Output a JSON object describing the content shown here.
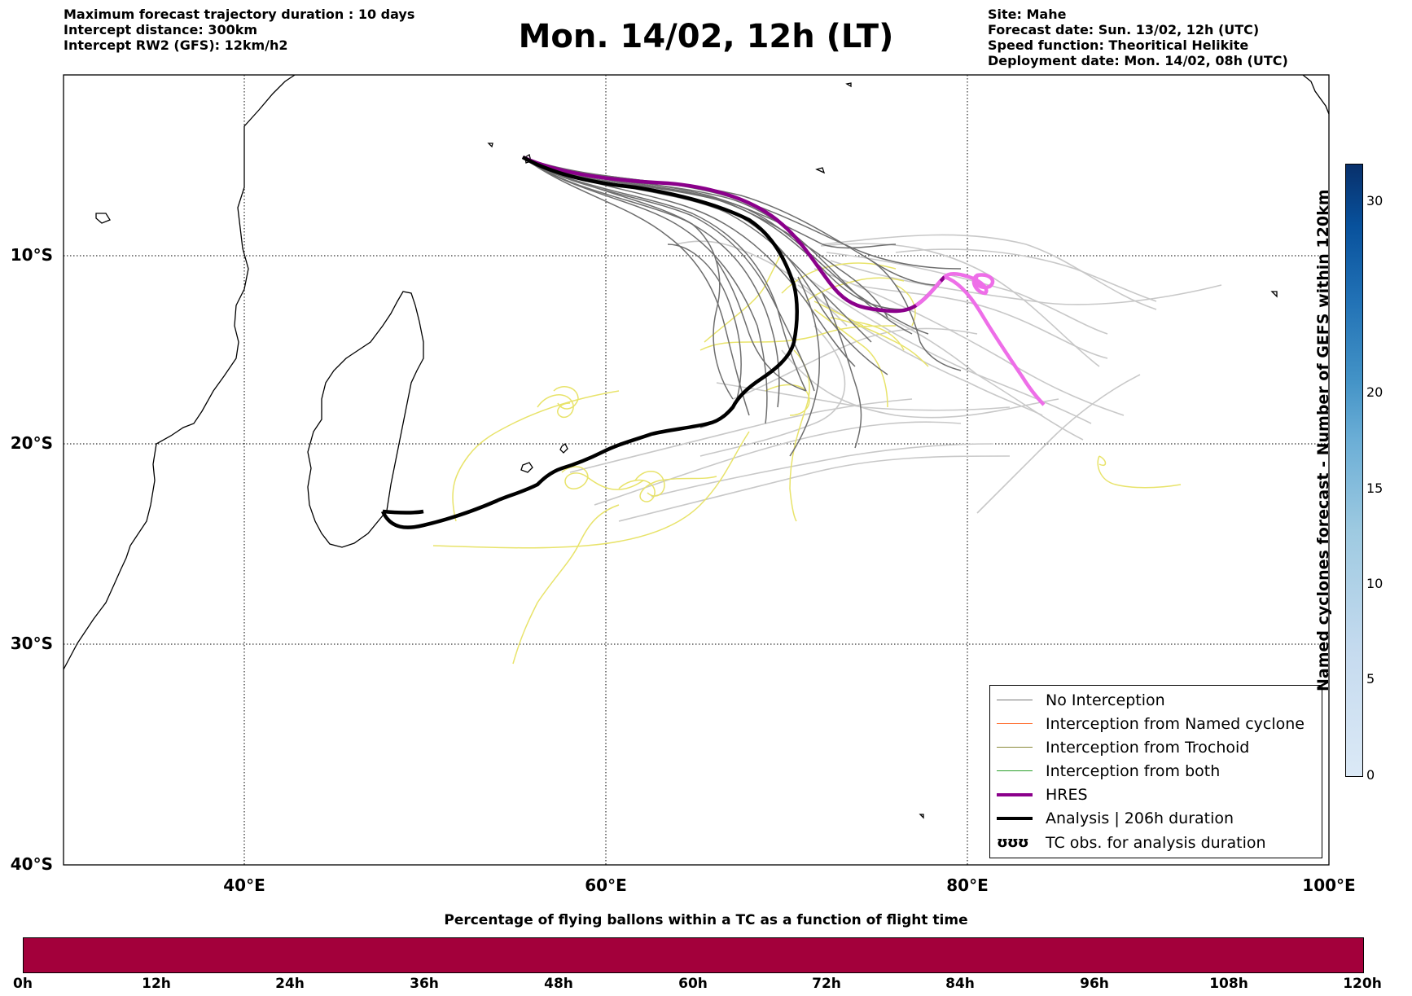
{
  "header": {
    "left": [
      "Maximum forecast trajectory duration : 10 days",
      "Intercept distance: 300km",
      "Intercept RW2 (GFS):  12km/h2"
    ],
    "title": "Mon. 14/02, 12h (LT)",
    "right": [
      "Site: Mahe",
      "Forecast date: Sun. 13/02, 12h (UTC)",
      "Speed function: Theoritical Helikite",
      "Deployment date: Mon. 14/02, 08h (UTC)"
    ]
  },
  "map": {
    "lon_range": [
      30,
      100
    ],
    "lat_range": [
      -40,
      0
    ],
    "lat_labels": [
      "10°S",
      "20°S",
      "30°S",
      "40°S"
    ],
    "lon_labels": [
      "40°E",
      "60°E",
      "80°E",
      "100°E"
    ]
  },
  "legend": {
    "items": [
      {
        "label": "No Interception",
        "color": "#777777"
      },
      {
        "label": "Interception from Named cyclone",
        "color": "#ff6a2a"
      },
      {
        "label": "Interception from Trochoid",
        "color": "#8a8a3a"
      },
      {
        "label": "Interception from both",
        "color": "#2aa02a"
      },
      {
        "label": "HRES",
        "color": "#8b008b"
      },
      {
        "label": "Analysis | 206h duration",
        "color": "#000000"
      },
      {
        "label": "TC obs. for analysis duration",
        "glyph": "ʊʊʊ"
      }
    ]
  },
  "colorbar_vertical": {
    "label": "Named cyclones forecast - Number of GEFS within 120km",
    "ticks": [
      "0",
      "5",
      "10",
      "15",
      "20",
      "30"
    ]
  },
  "colorbar_horizontal": {
    "title": "Percentage of flying ballons within a TC as a function of flight time",
    "ticks": [
      "0h",
      "12h",
      "24h",
      "36h",
      "48h",
      "60h",
      "72h",
      "84h",
      "96h",
      "108h",
      "120h"
    ],
    "color": "#a3003b"
  },
  "colors": {
    "ensemble": "#6e6e6e",
    "ensemble_light": "#c8c8c8",
    "hres": "#8b008b",
    "hres_tail": "#ee6ee8",
    "analysis": "#000000",
    "tc_obs": "#e8e36a"
  }
}
